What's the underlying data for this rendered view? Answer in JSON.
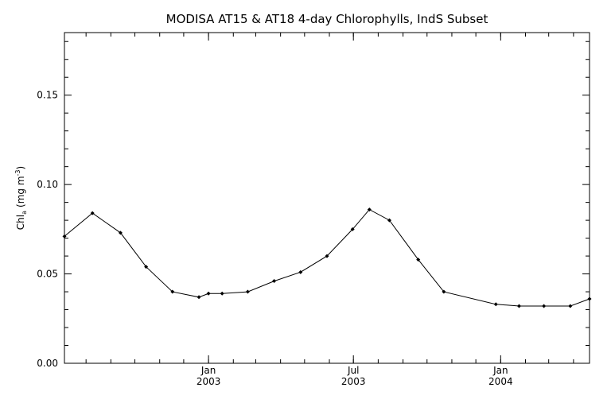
{
  "chart_data": {
    "type": "line",
    "title": "MODISA AT15 & AT18 4-day Chlorophylls, IndS Subset",
    "ylabel": "Chl",
    "ylabel_sub": "a",
    "ylabel_units": "(mg m",
    "ylabel_sup": "-3",
    "ylabel_close": ")",
    "ylim": [
      0.0,
      0.185
    ],
    "yticks": [
      "0.00",
      "0.05",
      "0.10",
      "0.15"
    ],
    "ytick_values": [
      0.0,
      0.05,
      0.1,
      0.15
    ],
    "xlim": [
      "2002-07-05",
      "2004-04-21"
    ],
    "xticks": [
      {
        "date": "2003-01-01",
        "month": "Jan",
        "year": "2003"
      },
      {
        "date": "2003-07-01",
        "month": "Jul",
        "year": "2003"
      },
      {
        "date": "2004-01-01",
        "month": "Jan",
        "year": "2004"
      }
    ],
    "grid": false,
    "x": [
      "2002-07-05",
      "2002-08-09",
      "2002-09-13",
      "2002-10-15",
      "2002-11-17",
      "2002-12-20",
      "2003-01-01",
      "2003-01-18",
      "2003-02-19",
      "2003-03-24",
      "2003-04-26",
      "2003-05-29",
      "2003-06-30",
      "2003-07-21",
      "2003-08-15",
      "2003-09-20",
      "2003-10-22",
      "2003-12-26",
      "2004-01-24",
      "2004-02-24",
      "2004-03-28",
      "2004-04-21"
    ],
    "series": [
      {
        "values": [
          0.071,
          0.084,
          0.073,
          0.054,
          0.04,
          0.037,
          0.039,
          0.039,
          0.04,
          0.046,
          0.051,
          0.06,
          0.075,
          0.086,
          0.08,
          0.058,
          0.04,
          0.033,
          0.032,
          0.032,
          0.032,
          0.036
        ],
        "color": "#000000"
      }
    ]
  }
}
